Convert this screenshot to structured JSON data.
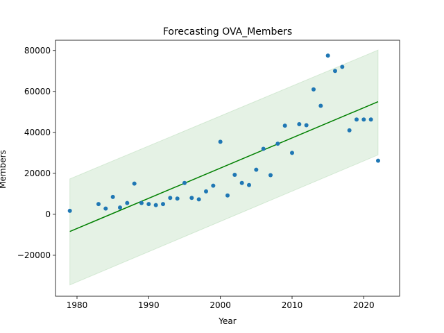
{
  "chart_data": {
    "type": "scatter",
    "title": "Forecasting OVA_Members",
    "xlabel": "Year",
    "ylabel": "Members",
    "xlim": [
      1977,
      2025
    ],
    "ylim": [
      -40000,
      85000
    ],
    "xticks": [
      1980,
      1990,
      2000,
      2010,
      2020
    ],
    "yticks": [
      -20000,
      0,
      20000,
      40000,
      60000,
      80000
    ],
    "ytick_labels": [
      "−20000",
      "0",
      "20000",
      "40000",
      "60000",
      "80000"
    ],
    "grid": false,
    "legend": "none",
    "series": [
      {
        "kind": "points",
        "color": "#1f77b4",
        "x": [
          1979,
          1983,
          1984,
          1985,
          1986,
          1987,
          1988,
          1989,
          1990,
          1991,
          1992,
          1993,
          1994,
          1995,
          1996,
          1997,
          1998,
          1999,
          2000,
          2001,
          2002,
          2003,
          2004,
          2005,
          2006,
          2007,
          2008,
          2009,
          2010,
          2011,
          2012,
          2013,
          2014,
          2015,
          2016,
          2017,
          2018,
          2019,
          2020,
          2021,
          2022
        ],
        "y": [
          1700,
          5000,
          2800,
          8500,
          3300,
          5500,
          15000,
          5500,
          5000,
          4500,
          5000,
          8000,
          7700,
          15300,
          8000,
          7300,
          11200,
          14000,
          35400,
          9200,
          19300,
          15300,
          14300,
          21800,
          32000,
          19100,
          34500,
          43300,
          30000,
          44000,
          43500,
          61000,
          53000,
          77500,
          70000,
          72000,
          41000,
          46300,
          46300,
          46300,
          26200
        ]
      },
      {
        "kind": "line",
        "color": "#008000",
        "x": [
          1979,
          2022
        ],
        "y": [
          -8400,
          55000
        ]
      },
      {
        "kind": "band",
        "color": "#008000",
        "opacity": 0.1,
        "x": [
          1979,
          2022
        ],
        "lower": [
          -34500,
          29000
        ],
        "upper": [
          17300,
          80200
        ]
      }
    ]
  }
}
